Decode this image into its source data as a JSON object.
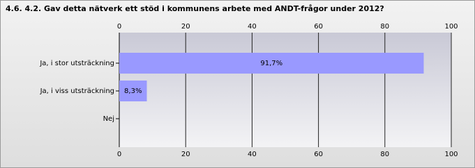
{
  "chart_data": {
    "type": "bar",
    "orientation": "horizontal",
    "title": "4.6. 4.2. Gav detta nätverk ett stöd i kommunens arbete med ANDT-frågor under 2012?",
    "categories": [
      "Ja, i stor utsträckning",
      "Ja, i viss utsträckning",
      "Nej"
    ],
    "values": [
      91.7,
      8.3,
      0
    ],
    "value_labels": [
      "91,7%",
      "8,3%",
      null
    ],
    "color": "#9999ff",
    "xlim": [
      0,
      100
    ],
    "xticks": [
      0,
      20,
      40,
      60,
      80,
      100
    ],
    "grid": true
  }
}
